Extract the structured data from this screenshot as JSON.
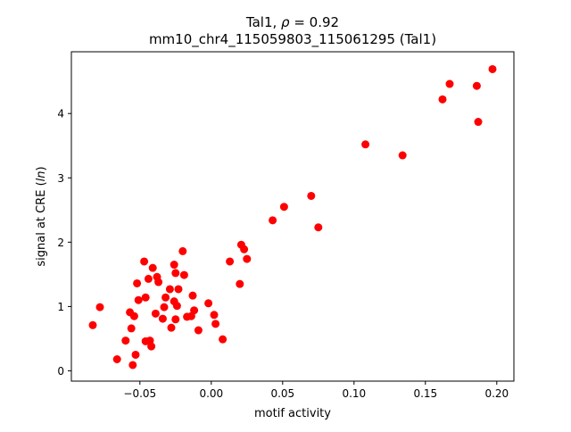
{
  "chart_data": {
    "type": "scatter",
    "title_line1_prefix": "Tal1, ",
    "title_line1_rho": "ρ",
    "title_line1_suffix": " = 0.92",
    "title_line2": "mm10_chr4_115059803_115061295 (Tal1)",
    "xlabel": "motif activity",
    "ylabel_prefix": "signal at CRE (",
    "ylabel_italic": "ln",
    "ylabel_suffix": ")",
    "xlim": [
      -0.098,
      0.212
    ],
    "ylim": [
      -0.16,
      4.96
    ],
    "x_ticks": [
      -0.05,
      0.0,
      0.05,
      0.1,
      0.15,
      0.2
    ],
    "x_tick_labels": [
      "−0.05",
      "0.00",
      "0.05",
      "0.10",
      "0.15",
      "0.20"
    ],
    "y_ticks": [
      0,
      1,
      2,
      3,
      4
    ],
    "y_tick_labels": [
      "0",
      "1",
      "2",
      "3",
      "4"
    ],
    "marker_color": "#ff0000",
    "grid": false,
    "points": [
      [
        -0.083,
        0.71
      ],
      [
        -0.078,
        0.99
      ],
      [
        -0.066,
        0.18
      ],
      [
        -0.06,
        0.47
      ],
      [
        -0.057,
        0.91
      ],
      [
        -0.056,
        0.66
      ],
      [
        -0.055,
        0.09
      ],
      [
        -0.054,
        0.85
      ],
      [
        -0.053,
        0.25
      ],
      [
        -0.052,
        1.36
      ],
      [
        -0.051,
        1.1
      ],
      [
        -0.047,
        1.7
      ],
      [
        -0.046,
        1.14
      ],
      [
        -0.046,
        0.46
      ],
      [
        -0.044,
        1.43
      ],
      [
        -0.043,
        0.47
      ],
      [
        -0.042,
        0.38
      ],
      [
        -0.041,
        1.6
      ],
      [
        -0.039,
        0.89
      ],
      [
        -0.038,
        1.46
      ],
      [
        -0.037,
        1.38
      ],
      [
        -0.034,
        0.81
      ],
      [
        -0.033,
        0.99
      ],
      [
        -0.032,
        1.14
      ],
      [
        -0.029,
        1.27
      ],
      [
        -0.028,
        0.67
      ],
      [
        -0.026,
        1.65
      ],
      [
        -0.026,
        1.08
      ],
      [
        -0.025,
        0.8
      ],
      [
        -0.025,
        1.52
      ],
      [
        -0.024,
        1.01
      ],
      [
        -0.023,
        1.27
      ],
      [
        -0.02,
        1.86
      ],
      [
        -0.019,
        1.49
      ],
      [
        -0.017,
        0.84
      ],
      [
        -0.014,
        0.85
      ],
      [
        -0.013,
        1.17
      ],
      [
        -0.012,
        0.94
      ],
      [
        -0.009,
        0.63
      ],
      [
        -0.002,
        1.05
      ],
      [
        0.002,
        0.87
      ],
      [
        0.003,
        0.73
      ],
      [
        0.008,
        0.49
      ],
      [
        0.013,
        1.7
      ],
      [
        0.02,
        1.35
      ],
      [
        0.021,
        1.96
      ],
      [
        0.023,
        1.89
      ],
      [
        0.025,
        1.74
      ],
      [
        0.043,
        2.34
      ],
      [
        0.051,
        2.55
      ],
      [
        0.07,
        2.72
      ],
      [
        0.075,
        2.23
      ],
      [
        0.108,
        3.52
      ],
      [
        0.134,
        3.35
      ],
      [
        0.162,
        4.22
      ],
      [
        0.167,
        4.46
      ],
      [
        0.186,
        4.43
      ],
      [
        0.187,
        3.87
      ],
      [
        0.197,
        4.69
      ]
    ]
  }
}
